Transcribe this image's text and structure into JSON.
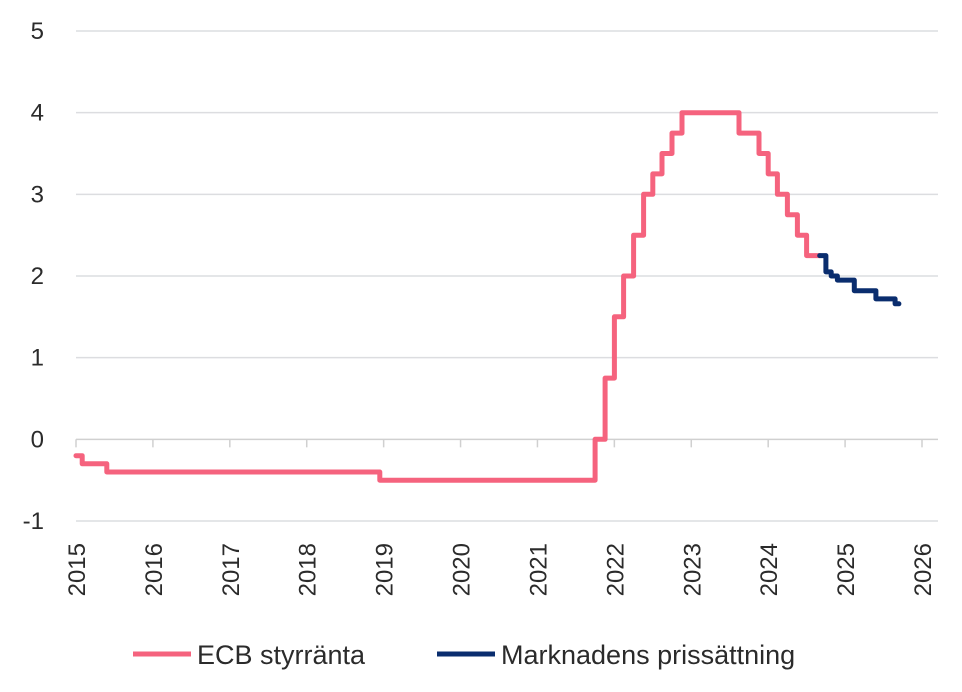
{
  "chart_data": {
    "type": "line",
    "title": "",
    "xlabel": "",
    "ylabel": "",
    "xlim": [
      2015,
      2026
    ],
    "ylim": [
      -1,
      5
    ],
    "y_ticks": [
      "-1",
      "0",
      "1",
      "2",
      "3",
      "4",
      "5"
    ],
    "x_ticks": [
      "2015",
      "2016",
      "2017",
      "2018",
      "2019",
      "2020",
      "2021",
      "2022",
      "2023",
      "2024",
      "2025",
      "2026"
    ],
    "grid": "horizontal",
    "legend": "bottom",
    "series": [
      {
        "name": "ECB styrränta",
        "color": "#f5637e",
        "step": true,
        "points": [
          [
            2015.0,
            -0.2
          ],
          [
            2015.08,
            -0.3
          ],
          [
            2015.4,
            -0.4
          ],
          [
            2018.95,
            -0.5
          ],
          [
            2021.75,
            0.0
          ],
          [
            2021.88,
            0.75
          ],
          [
            2022.0,
            1.5
          ],
          [
            2022.12,
            2.0
          ],
          [
            2022.25,
            2.5
          ],
          [
            2022.38,
            3.0
          ],
          [
            2022.5,
            3.25
          ],
          [
            2022.62,
            3.5
          ],
          [
            2022.75,
            3.75
          ],
          [
            2022.88,
            4.0
          ],
          [
            2023.62,
            3.75
          ],
          [
            2023.88,
            3.5
          ],
          [
            2024.0,
            3.25
          ],
          [
            2024.12,
            3.0
          ],
          [
            2024.25,
            2.75
          ],
          [
            2024.38,
            2.5
          ],
          [
            2024.5,
            2.25
          ],
          [
            2024.67,
            2.25
          ]
        ]
      },
      {
        "name": "Marknadens prissättning",
        "color": "#0a2d6e",
        "step": true,
        "points": [
          [
            2024.67,
            2.25
          ],
          [
            2024.75,
            2.05
          ],
          [
            2024.82,
            2.0
          ],
          [
            2024.9,
            1.95
          ],
          [
            2025.12,
            1.82
          ],
          [
            2025.4,
            1.72
          ],
          [
            2025.65,
            1.66
          ],
          [
            2025.7,
            1.66
          ]
        ]
      }
    ]
  }
}
